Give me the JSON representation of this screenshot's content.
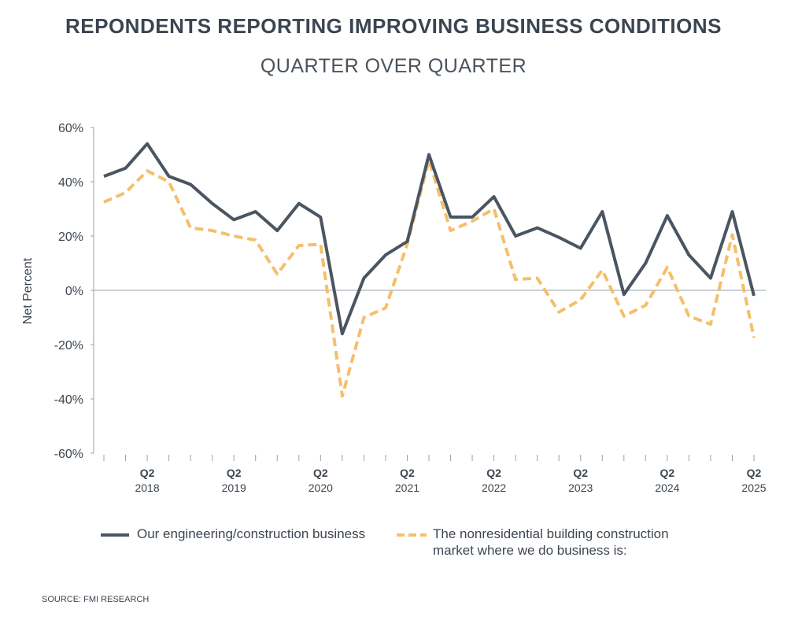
{
  "title": "REPONDENTS REPORTING IMPROVING BUSINESS CONDITIONS",
  "subtitle": "QUARTER OVER QUARTER",
  "source": "SOURCE: FMI RESEARCH",
  "colors": {
    "series1": "#4a5561",
    "series2": "#f5bf6b",
    "axis": "#9aa0a6",
    "text": "#3d4650"
  },
  "legend": {
    "item1": "Our engineering/construction business",
    "item2_line1": "The nonresidential building construction",
    "item2_line2": "market where we do business is:"
  },
  "chart_data": {
    "type": "line",
    "title": "REPONDENTS REPORTING IMPROVING BUSINESS CONDITIONS",
    "subtitle": "QUARTER OVER QUARTER",
    "ylabel": "Net Percent",
    "xlabel": "",
    "ylim": [
      -60,
      60
    ],
    "yticks": [
      60,
      40,
      20,
      0,
      -20,
      -40,
      -60
    ],
    "ytick_labels": [
      "60%",
      "40%",
      "20%",
      "0%",
      "-20%",
      "-40%",
      "-60%"
    ],
    "x_count": 31,
    "x_labels": [
      {
        "index": 2,
        "q": "Q2",
        "year": "2018"
      },
      {
        "index": 6,
        "q": "Q2",
        "year": "2019"
      },
      {
        "index": 10,
        "q": "Q2",
        "year": "2020"
      },
      {
        "index": 14,
        "q": "Q2",
        "year": "2021"
      },
      {
        "index": 18,
        "q": "Q2",
        "year": "2022"
      },
      {
        "index": 22,
        "q": "Q2",
        "year": "2023"
      },
      {
        "index": 26,
        "q": "Q2",
        "year": "2024"
      },
      {
        "index": 30,
        "q": "Q2",
        "year": "2025"
      }
    ],
    "series": [
      {
        "name": "Our engineering/construction business",
        "style": "solid",
        "values": [
          42,
          45,
          54,
          42,
          39,
          32,
          26,
          29,
          22,
          32,
          27,
          -16,
          4.5,
          13,
          18,
          50,
          27,
          27,
          34.5,
          20,
          23,
          19.5,
          15.5,
          29,
          -1.5,
          10,
          27.5,
          13,
          4.5,
          29,
          -2
        ]
      },
      {
        "name": "The nonresidential building construction market where we do business is:",
        "style": "dashed",
        "values": [
          32.5,
          36,
          44,
          40,
          23,
          22,
          20,
          18.5,
          6,
          16.5,
          17,
          -39,
          -10,
          -6.5,
          17,
          48,
          22,
          25.5,
          30,
          4,
          4.5,
          -8,
          -3.5,
          7.5,
          -9.5,
          -5.5,
          8.5,
          -9.5,
          -12.5,
          20.5,
          -17.5
        ]
      }
    ]
  }
}
